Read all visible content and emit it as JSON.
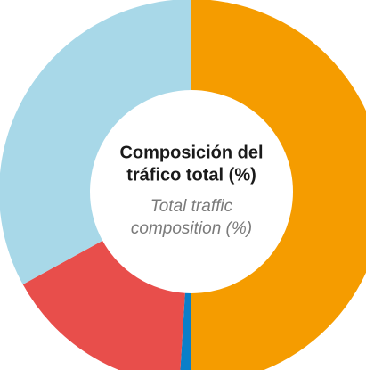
{
  "chart_data": {
    "type": "donut",
    "title": [
      "Composición del",
      "tráfico total (%)"
    ],
    "subtitle": [
      "Total traffic",
      "composition (%)"
    ],
    "categories": [
      null,
      null,
      null,
      null
    ],
    "values": [
      50,
      1,
      16,
      33
    ],
    "colors": [
      "#f59c00",
      "#0a7fc9",
      "#e84e4b",
      "#a8d8e8"
    ]
  }
}
